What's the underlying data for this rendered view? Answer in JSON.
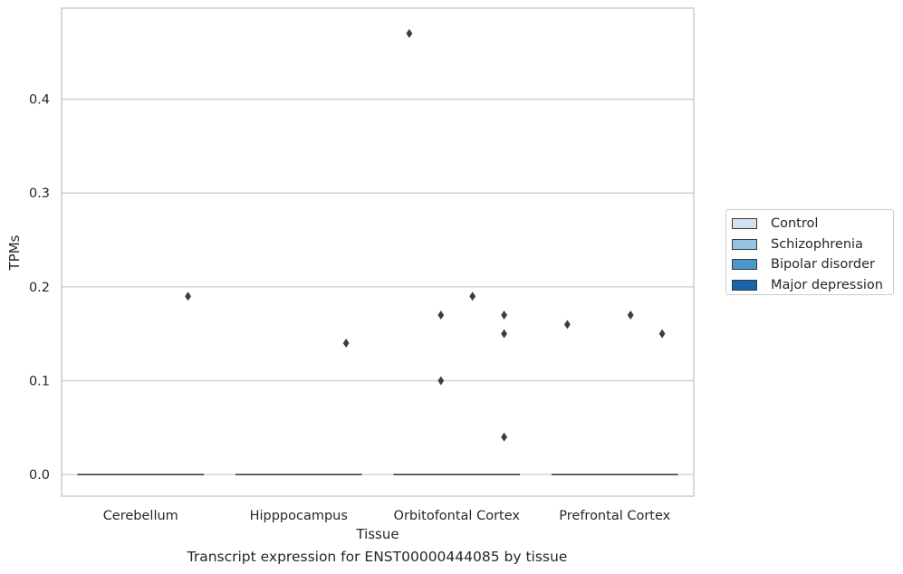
{
  "chart_data": {
    "type": "box",
    "title": "",
    "caption": "Transcript expression for ENST00000444085 by tissue",
    "xlabel": "Tissue",
    "ylabel": "TPMs",
    "ylim": [
      -0.023,
      0.497
    ],
    "yticks": [
      0.0,
      0.1,
      0.2,
      0.3,
      0.4
    ],
    "ytick_labels": [
      "0.0",
      "0.1",
      "0.2",
      "0.3",
      "0.4"
    ],
    "categories": [
      "Cerebellum",
      "Hipppocampus",
      "Orbitofontal Cortex",
      "Prefrontal Cortex"
    ],
    "grid": "horizontal",
    "legend_position": "right",
    "series": [
      {
        "name": "Control",
        "color": "#d0e1f2",
        "median": [
          0,
          0,
          0,
          0
        ]
      },
      {
        "name": "Schizophrenia",
        "color": "#94c4df",
        "median": [
          0,
          0,
          0,
          0
        ]
      },
      {
        "name": "Bipolar disorder",
        "color": "#4a98c9",
        "median": [
          0,
          0,
          0,
          0
        ]
      },
      {
        "name": "Major depression",
        "color": "#1764ab",
        "median": [
          0,
          0,
          0,
          0
        ]
      }
    ],
    "outliers": [
      {
        "category": "Cerebellum",
        "series": "Major depression",
        "value": 0.19
      },
      {
        "category": "Hipppocampus",
        "series": "Major depression",
        "value": 0.14
      },
      {
        "category": "Orbitofontal Cortex",
        "series": "Control",
        "value": 0.47
      },
      {
        "category": "Orbitofontal Cortex",
        "series": "Schizophrenia",
        "value": 0.17
      },
      {
        "category": "Orbitofontal Cortex",
        "series": "Schizophrenia",
        "value": 0.1
      },
      {
        "category": "Orbitofontal Cortex",
        "series": "Bipolar disorder",
        "value": 0.19
      },
      {
        "category": "Orbitofontal Cortex",
        "series": "Major depression",
        "value": 0.17
      },
      {
        "category": "Orbitofontal Cortex",
        "series": "Major depression",
        "value": 0.15
      },
      {
        "category": "Orbitofontal Cortex",
        "series": "Major depression",
        "value": 0.04
      },
      {
        "category": "Prefrontal Cortex",
        "series": "Control",
        "value": 0.16
      },
      {
        "category": "Prefrontal Cortex",
        "series": "Bipolar disorder",
        "value": 0.17
      },
      {
        "category": "Prefrontal Cortex",
        "series": "Major depression",
        "value": 0.15
      }
    ]
  }
}
